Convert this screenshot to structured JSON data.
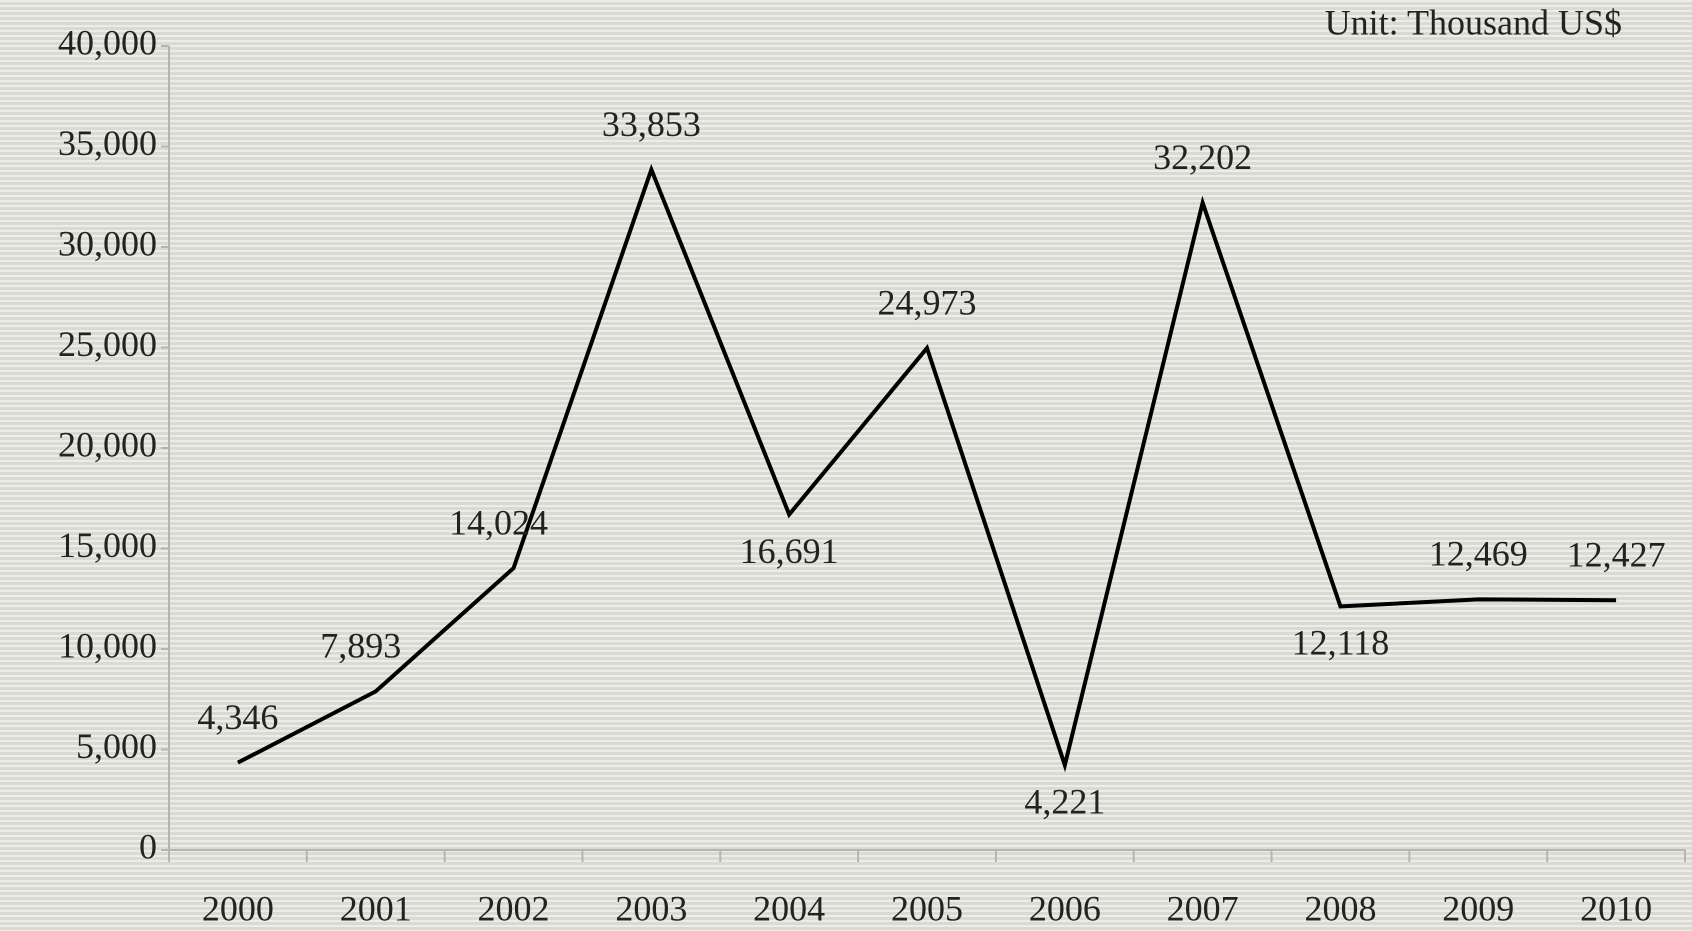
{
  "chart_data": {
    "type": "line",
    "unit_note": "Unit: Thousand US$",
    "categories": [
      "2000",
      "2001",
      "2002",
      "2003",
      "2004",
      "2005",
      "2006",
      "2007",
      "2008",
      "2009",
      "2010"
    ],
    "values": [
      4346,
      7893,
      14024,
      33853,
      16691,
      24973,
      4221,
      32202,
      12118,
      12469,
      12427
    ],
    "value_labels": [
      "4,346",
      "7,893",
      "14,024",
      "33,853",
      "16,691",
      "24,973",
      "4,221",
      "32,202",
      "12,118",
      "12,469",
      "12,427"
    ],
    "color": "#000000",
    "ylim": [
      0,
      40000
    ],
    "yticks": [
      0,
      {
        "value": 5000,
        "label": "5,000"
      },
      {
        "value": 10000,
        "label": "10,000"
      },
      {
        "value": 15000,
        "label": "15,000"
      },
      {
        "value": 20000,
        "label": "20,000"
      },
      {
        "value": 25000,
        "label": "25,000"
      },
      {
        "value": 30000,
        "label": "30,000"
      },
      {
        "value": 35000,
        "label": "35,000"
      },
      {
        "value": 40000,
        "label": "40,000"
      }
    ]
  }
}
